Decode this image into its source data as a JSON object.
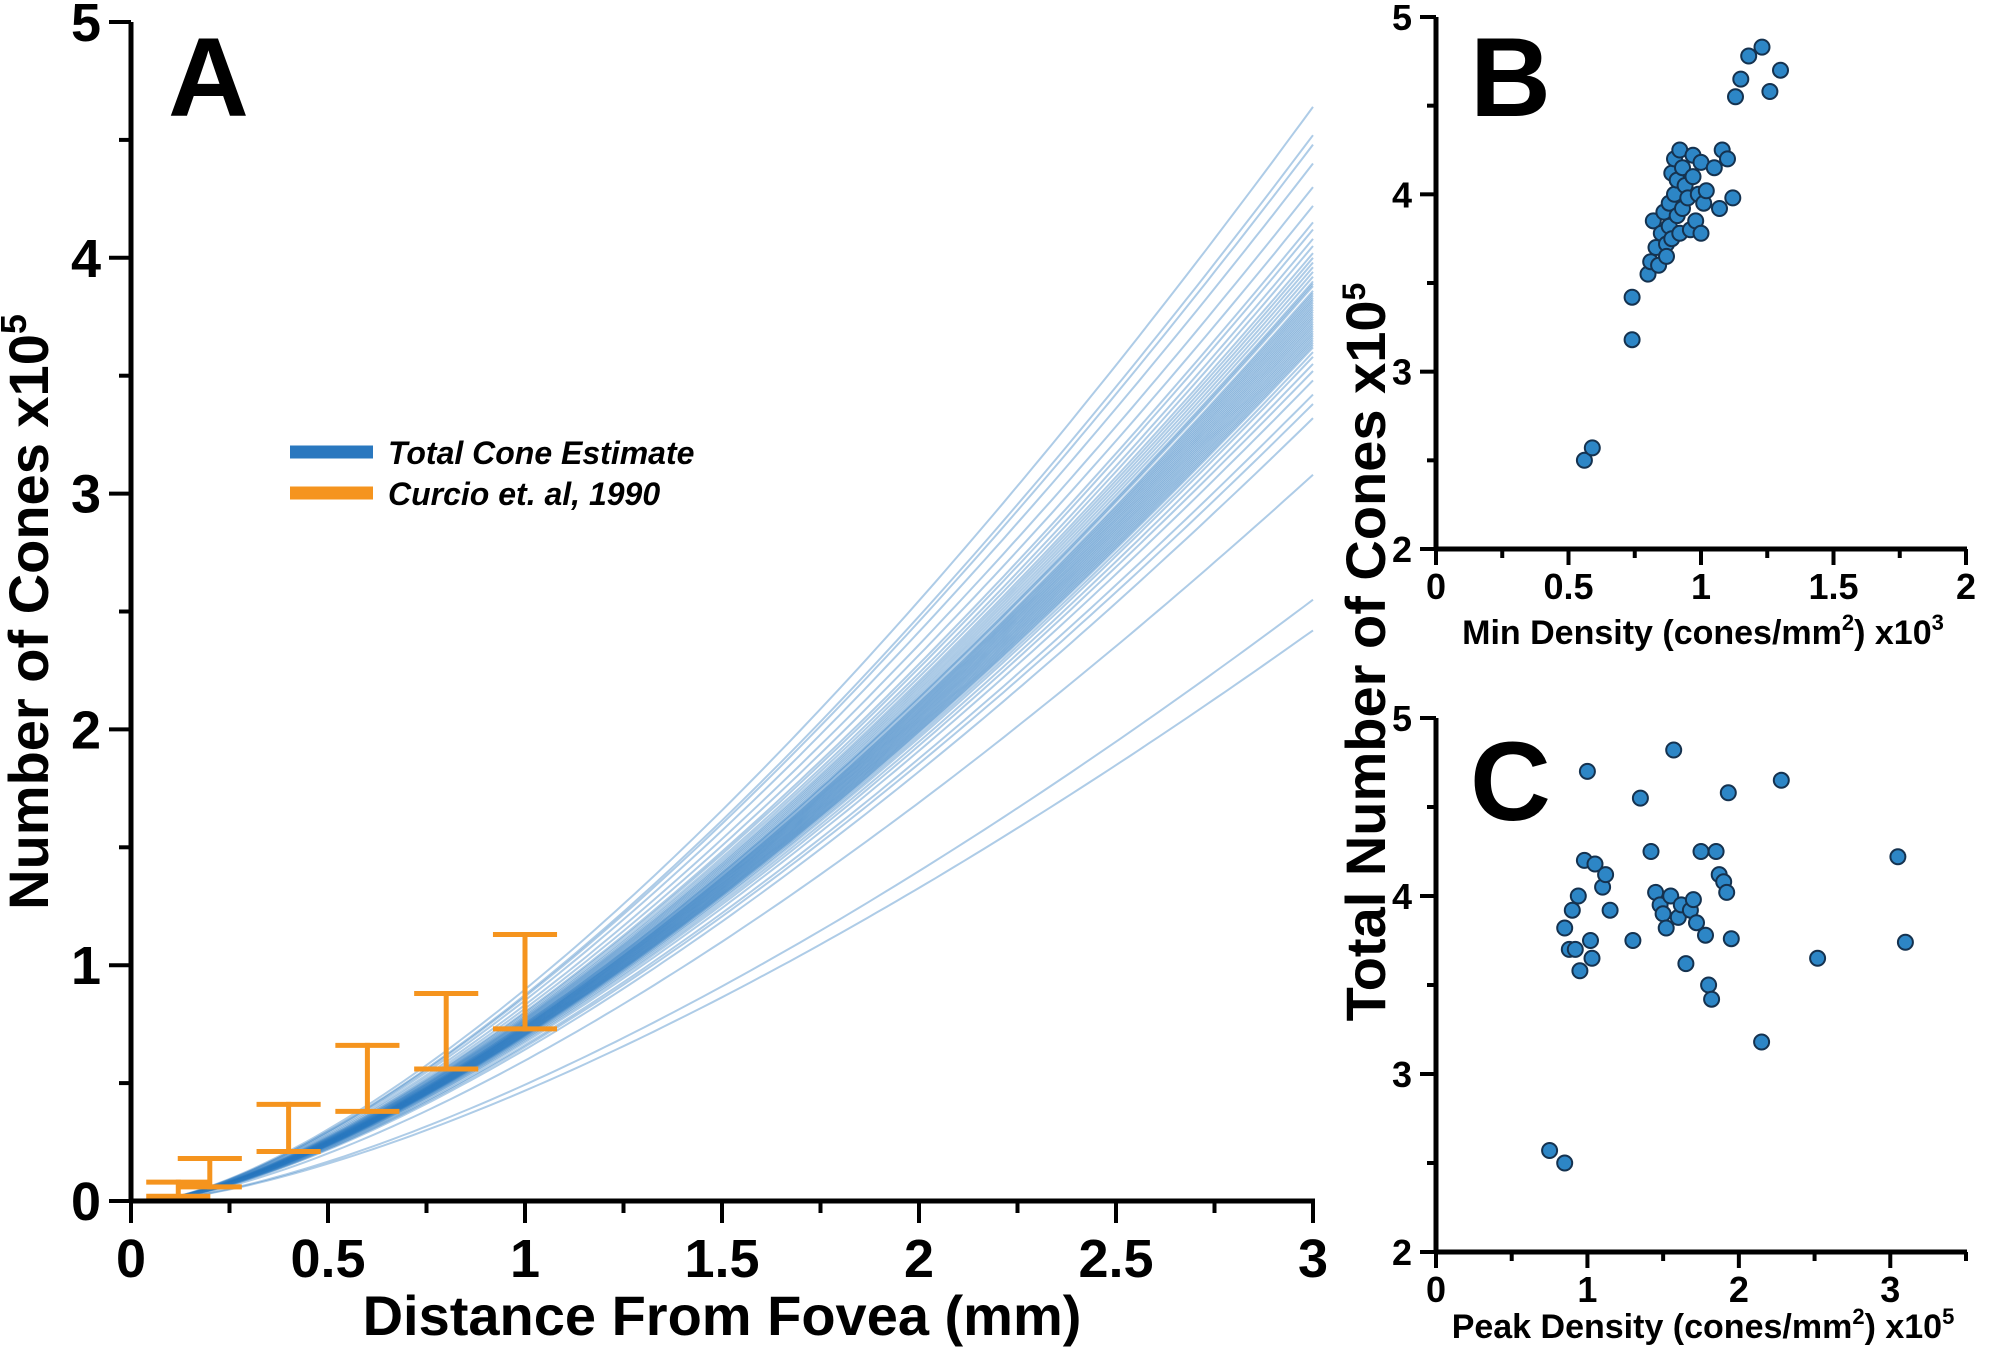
{
  "colors": {
    "blue": "#2a78bf",
    "light_blue": "#9cc8e8",
    "orange": "#f5941e",
    "point_fill": "#2d86c6",
    "point_edge": "#15324f"
  },
  "chart_data": [
    {
      "panel": "A",
      "type": "line",
      "xlabel": "Distance From Fovea (mm)",
      "ylabel": "Number of Cones x10",
      "ylabel_exponent": "5",
      "xlim": [
        0,
        3
      ],
      "ylim": [
        0,
        5
      ],
      "xticks": [
        0,
        0.5,
        1,
        1.5,
        2,
        2.5,
        3
      ],
      "xtick_labels": [
        "0",
        "0.5",
        "1",
        "1.5",
        "2",
        "2.5",
        "3"
      ],
      "yticks": [
        0,
        1,
        2,
        3,
        4,
        5
      ],
      "ytick_labels": [
        "0",
        "1",
        "2",
        "3",
        "4",
        "5"
      ],
      "legend": [
        {
          "label": "Total Cone Estimate",
          "color": "#2a78bf"
        },
        {
          "label": "Curcio et. al, 1990",
          "color": "#f5941e"
        }
      ],
      "legend_position": "upper-left",
      "curve_model": "y = a * (x - 0.05)^1.45",
      "curve_endpoints_at_3mm": [
        4.64,
        4.52,
        4.48,
        4.4,
        4.3,
        4.22,
        4.15,
        4.12,
        4.08,
        4.05,
        4.02,
        4.0,
        3.98,
        3.96,
        3.94,
        3.92,
        3.9,
        3.89,
        3.88,
        3.86,
        3.85,
        3.84,
        3.83,
        3.82,
        3.81,
        3.8,
        3.79,
        3.78,
        3.77,
        3.76,
        3.75,
        3.74,
        3.73,
        3.72,
        3.71,
        3.7,
        3.69,
        3.68,
        3.67,
        3.66,
        3.65,
        3.64,
        3.63,
        3.62,
        3.6,
        3.58,
        3.55,
        3.52,
        3.48,
        3.42,
        3.38,
        3.32,
        3.08,
        2.55,
        2.42
      ],
      "error_bars": [
        {
          "x": 0.12,
          "y": 0.05,
          "low": 0.02,
          "high": 0.08
        },
        {
          "x": 0.2,
          "y": 0.12,
          "low": 0.06,
          "high": 0.18
        },
        {
          "x": 0.4,
          "y": 0.31,
          "low": 0.21,
          "high": 0.41
        },
        {
          "x": 0.6,
          "y": 0.52,
          "low": 0.38,
          "high": 0.66
        },
        {
          "x": 0.8,
          "y": 0.72,
          "low": 0.56,
          "high": 0.88
        },
        {
          "x": 1.0,
          "y": 0.93,
          "low": 0.73,
          "high": 1.13
        }
      ]
    },
    {
      "panel": "B",
      "type": "scatter",
      "xlabel": "Min Density (cones/mm",
      "xlabel_sup": "2",
      "xlabel_suffix": ") x10",
      "xlabel_exponent": "3",
      "xlim": [
        0,
        2
      ],
      "ylim": [
        2,
        5
      ],
      "xticks": [
        0,
        0.5,
        1,
        1.5,
        2
      ],
      "xtick_labels": [
        "0",
        "0.5",
        "1",
        "1.5",
        "2"
      ],
      "yticks": [
        2,
        3,
        4,
        5
      ],
      "ytick_labels": [
        "2",
        "3",
        "4",
        "5"
      ],
      "x": [
        0.56,
        0.59,
        0.74,
        0.74,
        0.8,
        0.81,
        0.82,
        0.83,
        0.84,
        0.85,
        0.86,
        0.87,
        0.87,
        0.88,
        0.88,
        0.89,
        0.89,
        0.9,
        0.9,
        0.91,
        0.91,
        0.92,
        0.92,
        0.93,
        0.93,
        0.94,
        0.95,
        0.96,
        0.97,
        0.97,
        0.98,
        0.99,
        1.0,
        1.0,
        1.01,
        1.02,
        1.05,
        1.07,
        1.08,
        1.1,
        1.12,
        1.13,
        1.15,
        1.18,
        1.23,
        1.26,
        1.3
      ],
      "y": [
        2.5,
        2.57,
        3.42,
        3.18,
        3.55,
        3.62,
        3.85,
        3.7,
        3.6,
        3.78,
        3.9,
        3.72,
        3.65,
        3.95,
        3.82,
        4.12,
        3.75,
        4.2,
        4.0,
        4.08,
        3.88,
        4.25,
        3.78,
        4.15,
        3.92,
        4.05,
        3.98,
        3.8,
        4.22,
        4.1,
        3.85,
        4.0,
        4.18,
        3.78,
        3.95,
        4.02,
        4.15,
        3.92,
        4.25,
        4.2,
        3.98,
        4.55,
        4.65,
        4.78,
        4.83,
        4.58,
        4.7
      ]
    },
    {
      "panel": "C",
      "type": "scatter",
      "xlabel": "Peak Density (cones/mm",
      "xlabel_sup": "2",
      "xlabel_suffix": ") x10",
      "xlabel_exponent": "5",
      "xlim": [
        0,
        3.5
      ],
      "ylim": [
        2,
        5
      ],
      "xticks": [
        0,
        1,
        2,
        3
      ],
      "xtick_labels": [
        "0",
        "1",
        "2",
        "3"
      ],
      "yticks": [
        2,
        3,
        4,
        5
      ],
      "ytick_labels": [
        "2",
        "3",
        "4",
        "5"
      ],
      "x": [
        0.75,
        0.85,
        0.85,
        0.88,
        0.9,
        0.92,
        0.94,
        0.95,
        0.98,
        1.0,
        1.02,
        1.03,
        1.05,
        1.1,
        1.12,
        1.15,
        1.3,
        1.35,
        1.42,
        1.45,
        1.48,
        1.5,
        1.52,
        1.55,
        1.57,
        1.6,
        1.62,
        1.65,
        1.68,
        1.7,
        1.72,
        1.75,
        1.78,
        1.8,
        1.82,
        1.85,
        1.87,
        1.9,
        1.92,
        1.93,
        1.95,
        2.15,
        2.28,
        2.52,
        3.05,
        3.1
      ],
      "y": [
        2.57,
        2.5,
        3.82,
        3.7,
        3.92,
        3.7,
        4.0,
        3.58,
        4.2,
        4.7,
        3.75,
        3.65,
        4.18,
        4.05,
        4.12,
        3.92,
        3.75,
        4.55,
        4.25,
        4.02,
        3.95,
        3.9,
        3.82,
        4.0,
        4.82,
        3.88,
        3.95,
        3.62,
        3.92,
        3.98,
        3.85,
        4.25,
        3.78,
        3.5,
        3.42,
        4.25,
        4.12,
        4.08,
        4.02,
        4.58,
        3.76,
        3.18,
        4.65,
        3.65,
        4.22,
        3.74
      ]
    }
  ],
  "shared_ylabel": "Total Number of Cones x10",
  "shared_ylabel_exponent": "5"
}
